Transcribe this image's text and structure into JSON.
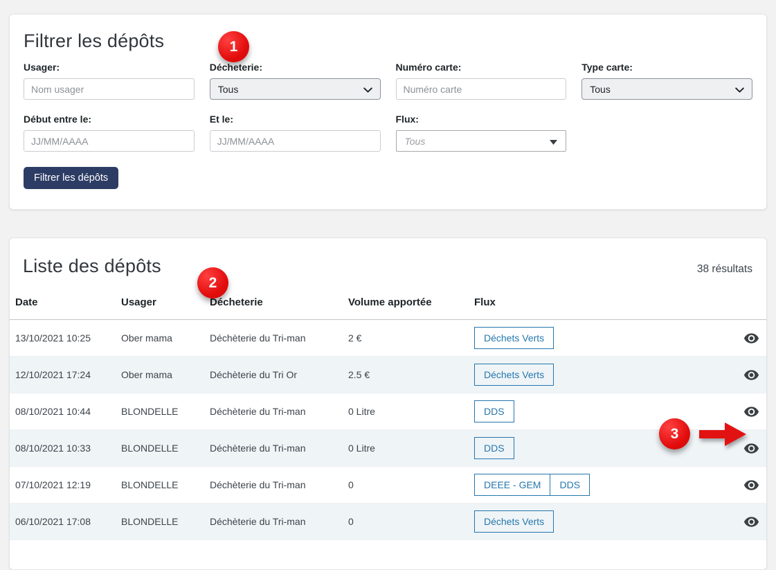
{
  "colors": {
    "accent_red": "#e20d0d",
    "link_blue": "#2577ad",
    "button_navy": "#2d3c64",
    "stripe_row": "#eff4f7",
    "page_background": "#f2f2f2"
  },
  "annotations": {
    "step1": "1",
    "step2": "2",
    "step3": "3"
  },
  "filter": {
    "title": "Filtrer les dépôts",
    "fields": {
      "usager": {
        "label": "Usager:",
        "placeholder": "Nom usager",
        "value": ""
      },
      "decheterie": {
        "label": "Décheterie:",
        "value": "Tous"
      },
      "numero_carte": {
        "label": "Numéro carte:",
        "placeholder": "Numéro carte",
        "value": ""
      },
      "type_carte": {
        "label": "Type carte:",
        "value": "Tous"
      },
      "debut": {
        "label": "Début entre le:",
        "placeholder": "JJ/MM/AAAA",
        "value": ""
      },
      "fin": {
        "label": "Et le:",
        "placeholder": "JJ/MM/AAAA",
        "value": ""
      },
      "flux": {
        "label": "Flux:",
        "placeholder": "Tous"
      }
    },
    "submit_label": "Filtrer les dépôts"
  },
  "list": {
    "title": "Liste des dépôts",
    "results_count": "38 résultats",
    "columns": [
      "Date",
      "Usager",
      "Décheterie",
      "Volume apportée",
      "Flux"
    ],
    "rows": [
      {
        "date": "13/10/2021 10:25",
        "usager": "Ober mama",
        "decheterie": "Déchèterie du Tri-man",
        "volume": "2 €",
        "flux": [
          "Déchets Verts"
        ]
      },
      {
        "date": "12/10/2021 17:24",
        "usager": "Ober mama",
        "decheterie": "Déchèterie du Tri Or",
        "volume": "2.5 €",
        "flux": [
          "Déchets Verts"
        ]
      },
      {
        "date": "08/10/2021 10:44",
        "usager": "BLONDELLE",
        "decheterie": "Déchèterie du Tri-man",
        "volume": "0 Litre",
        "flux": [
          "DDS"
        ]
      },
      {
        "date": "08/10/2021 10:33",
        "usager": "BLONDELLE",
        "decheterie": "Déchèterie du Tri-man",
        "volume": "0 Litre",
        "flux": [
          "DDS"
        ]
      },
      {
        "date": "07/10/2021 12:19",
        "usager": "BLONDELLE",
        "decheterie": "Déchèterie du Tri-man",
        "volume": "0",
        "flux": [
          "DEEE - GEM",
          "DDS"
        ]
      },
      {
        "date": "06/10/2021 17:08",
        "usager": "BLONDELLE",
        "decheterie": "Déchèterie du Tri-man",
        "volume": "0",
        "flux": [
          "Déchets Verts"
        ]
      }
    ]
  }
}
